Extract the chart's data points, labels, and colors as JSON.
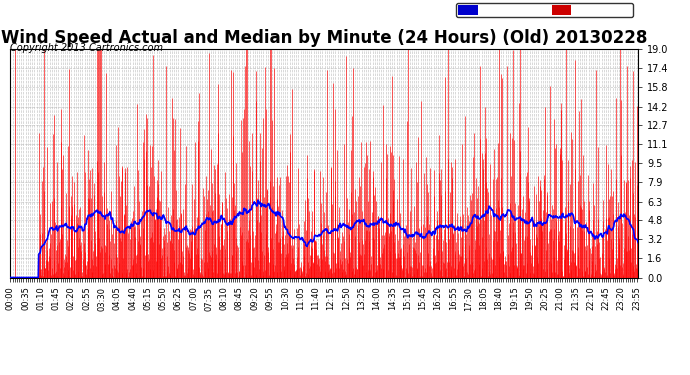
{
  "title": "Wind Speed Actual and Median by Minute (24 Hours) (Old) 20130228",
  "copyright": "Copyright 2013 Cartronics.com",
  "yticks": [
    0.0,
    1.6,
    3.2,
    4.8,
    6.3,
    7.9,
    9.5,
    11.1,
    12.7,
    14.2,
    15.8,
    17.4,
    19.0
  ],
  "ymin": 0.0,
  "ymax": 19.0,
  "bg_color": "#ffffff",
  "plot_bg_color": "#ffffff",
  "grid_color": "#bbbbbb",
  "wind_color": "#ff0000",
  "median_color": "#0000ff",
  "title_fontsize": 12,
  "copyright_fontsize": 7,
  "legend_median_color": "#0000cc",
  "legend_wind_color": "#cc0000",
  "n_minutes": 1440,
  "calm_minutes": 65,
  "early_spike_minute": 10,
  "early_spike_value": 19.0
}
